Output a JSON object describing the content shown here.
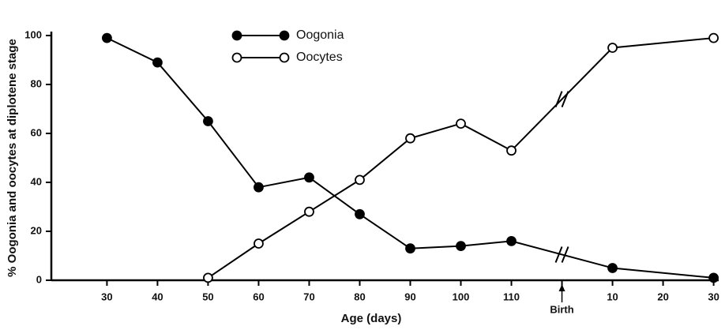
{
  "chart_data": {
    "type": "line",
    "xlabel": "Age (days)",
    "ylabel": "% Oogonia and oocytes at diplotene stage",
    "xlim": [
      19,
      151
    ],
    "ylim": [
      0,
      100
    ],
    "xticks": [
      30,
      40,
      50,
      60,
      70,
      80,
      90,
      100,
      110,
      {
        "value": 120,
        "label": "Birth"
      },
      {
        "value": 130,
        "label": "10"
      },
      {
        "value": 140,
        "label": "20"
      },
      {
        "value": 150,
        "label": "30"
      }
    ],
    "yticks": [
      0,
      20,
      40,
      60,
      80,
      100
    ],
    "legend": "top",
    "series": [
      {
        "name": "Oogonia",
        "color": "#000000",
        "marker": "filled",
        "x": [
          30,
          40,
          50,
          60,
          70,
          80,
          90,
          100,
          110,
          130,
          150
        ],
        "values": [
          99,
          89,
          65,
          38,
          42,
          27,
          13,
          14,
          16,
          5,
          1
        ]
      },
      {
        "name": "Oocytes",
        "color": "#000000",
        "marker": "open",
        "x": [
          50,
          60,
          70,
          80,
          90,
          100,
          110,
          130,
          150
        ],
        "values": [
          1,
          15,
          28,
          41,
          58,
          64,
          53,
          95,
          99
        ]
      }
    ]
  }
}
